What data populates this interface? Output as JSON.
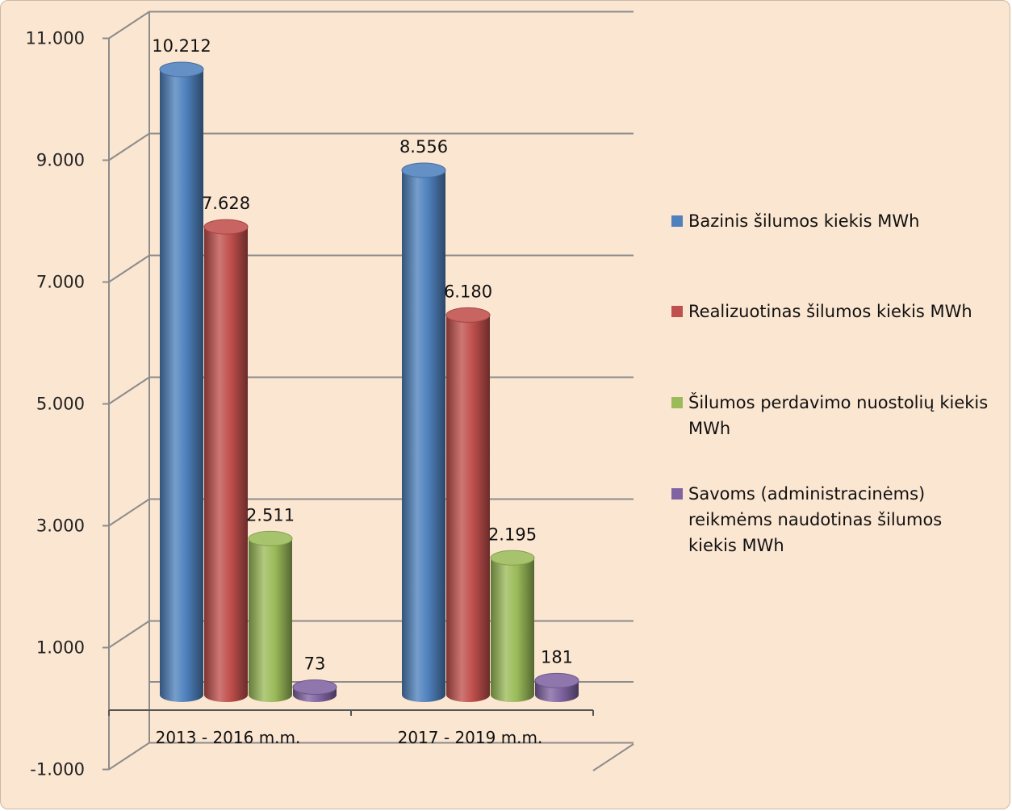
{
  "chart_data": {
    "type": "bar",
    "style": "3d-cylinder",
    "categories": [
      "2013 - 2016 m.m.",
      "2017 - 2019 m.m."
    ],
    "series": [
      {
        "name": "Bazinis šilumos kiekis MWh",
        "color": "#4f81bd",
        "values": [
          10212,
          8556
        ],
        "labels": [
          "10.212",
          "8.556"
        ]
      },
      {
        "name": "Realizuotinas šilumos kiekis MWh",
        "color": "#c0504d",
        "values": [
          7628,
          6180
        ],
        "labels": [
          "7.628",
          "6.180"
        ]
      },
      {
        "name": "Šilumos perdavimo nuostolių kiekis MWh",
        "color": "#9bbb59",
        "values": [
          2511,
          2195
        ],
        "labels": [
          "2.511",
          "2.195"
        ]
      },
      {
        "name": "Savoms (administracinėms) reikmėms naudotinas šilumos kiekis MWh",
        "color": "#8064a2",
        "values": [
          73,
          181
        ],
        "labels": [
          "73",
          "181"
        ]
      }
    ],
    "legend_lines": [
      [
        "Bazinis šilumos kiekis MWh"
      ],
      [
        "Realizuotinas šilumos kiekis MWh"
      ],
      [
        "Šilumos perdavimo nuostolių kiekis",
        "MWh"
      ],
      [
        "Savoms (administracinėms)",
        "reikmėms naudotinas šilumos",
        "kiekis MWh"
      ]
    ],
    "y_ticks": [
      11000,
      9000,
      7000,
      5000,
      3000,
      1000,
      -1000
    ],
    "y_tick_labels": [
      "11.000",
      "9.000",
      "7.000",
      "5.000",
      "3.000",
      "1.000",
      "-1.000"
    ],
    "negative_tick_color": "#d62020",
    "ylim": [
      -1000,
      11000
    ],
    "grid": true,
    "legend_position": "right",
    "title": "",
    "xlabel": "",
    "ylabel": ""
  }
}
